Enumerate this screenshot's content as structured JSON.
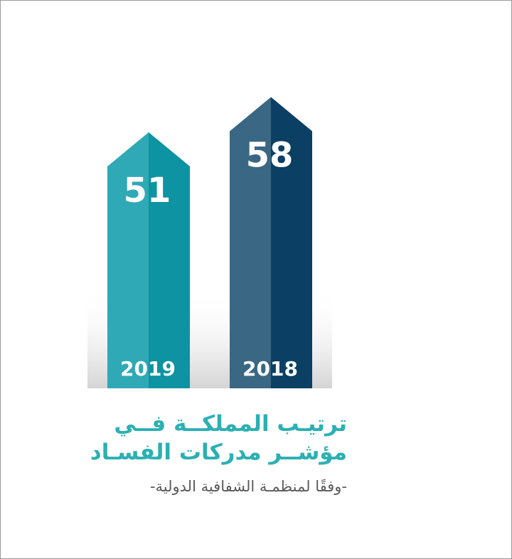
{
  "chart_data": {
    "type": "bar",
    "categories": [
      "2019",
      "2018"
    ],
    "values": [
      51,
      58
    ],
    "colors": {
      "2019": {
        "light": "#2fa9b6",
        "dark": "#0d93a1"
      },
      "2018": {
        "light": "#3a6783",
        "dark": "#0b3f63"
      }
    }
  },
  "caption": {
    "line1": "ترتيـب المملكــة فــي",
    "line2": "مؤشــر مدركات الفسـاد",
    "line3": "-وفقًا لمنظمـة الشفافية الدولية-"
  }
}
